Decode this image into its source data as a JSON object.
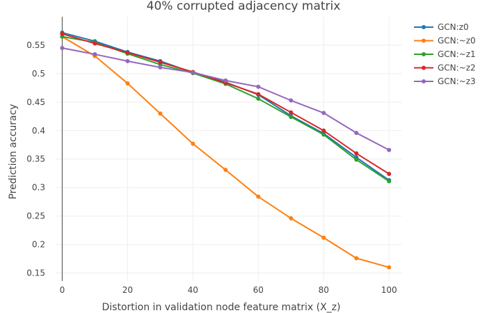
{
  "chart_data": {
    "type": "line",
    "title": "40% corrupted adjacency matrix",
    "xlabel": "Distortion in validation node feature matrix (X_z)",
    "ylabel": "Prediction accuracy",
    "x": [
      0,
      10,
      20,
      30,
      40,
      50,
      60,
      70,
      80,
      90,
      100
    ],
    "xlim": [
      -2,
      104
    ],
    "ylim": [
      0.136,
      0.6
    ],
    "xticks": [
      0,
      20,
      40,
      60,
      80,
      100
    ],
    "xtick_labels": [
      "0",
      "20",
      "40",
      "60",
      "80",
      "100"
    ],
    "yticks": [
      0.15,
      0.2,
      0.25,
      0.3,
      0.35,
      0.4,
      0.45,
      0.5,
      0.55
    ],
    "ytick_labels": [
      "0.15",
      "0.2",
      "0.25",
      "0.3",
      "0.35",
      "0.4",
      "0.45",
      "0.5",
      "0.55"
    ],
    "grid": true,
    "legend_position": "top-right",
    "series": [
      {
        "name": "GCN:z0",
        "color": "#1f77b4",
        "values": [
          0.572,
          0.557,
          0.538,
          0.522,
          0.502,
          0.485,
          0.463,
          0.426,
          0.395,
          0.353,
          0.313
        ]
      },
      {
        "name": "GCN:~z0",
        "color": "#ff7f0e",
        "values": [
          0.565,
          0.531,
          0.483,
          0.43,
          0.377,
          0.331,
          0.284,
          0.246,
          0.212,
          0.176,
          0.16
        ]
      },
      {
        "name": "GCN:~z1",
        "color": "#2ca02c",
        "values": [
          0.565,
          0.555,
          0.535,
          0.516,
          0.501,
          0.482,
          0.456,
          0.424,
          0.393,
          0.349,
          0.311
        ]
      },
      {
        "name": "GCN:~z2",
        "color": "#d62728",
        "values": [
          0.57,
          0.553,
          0.537,
          0.52,
          0.503,
          0.484,
          0.464,
          0.432,
          0.4,
          0.36,
          0.324
        ]
      },
      {
        "name": "GCN:~z3",
        "color": "#9467bd",
        "values": [
          0.545,
          0.534,
          0.522,
          0.511,
          0.502,
          0.488,
          0.477,
          0.453,
          0.431,
          0.396,
          0.366
        ]
      }
    ]
  }
}
